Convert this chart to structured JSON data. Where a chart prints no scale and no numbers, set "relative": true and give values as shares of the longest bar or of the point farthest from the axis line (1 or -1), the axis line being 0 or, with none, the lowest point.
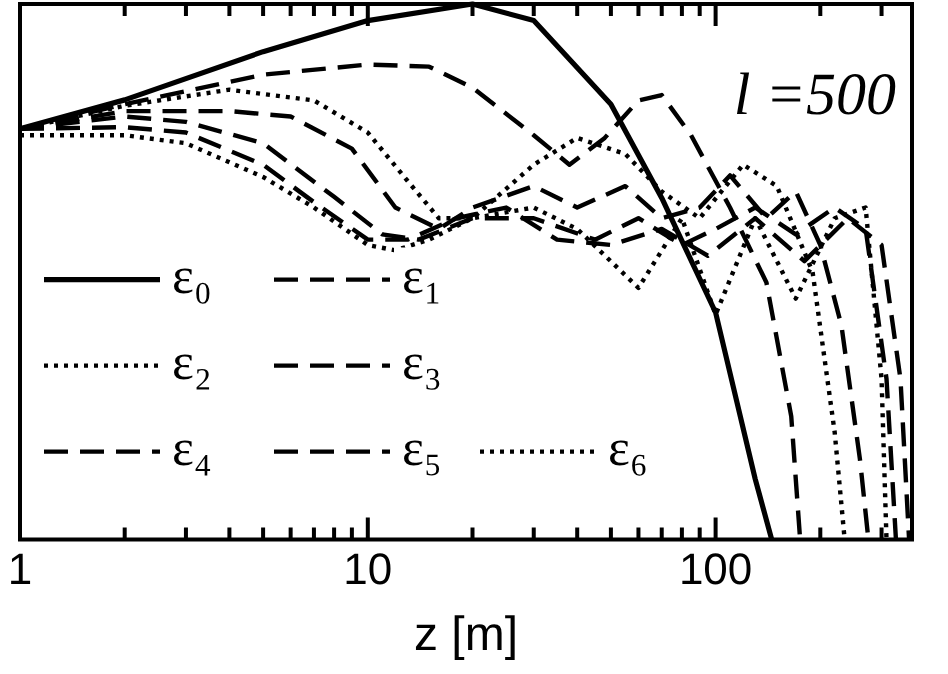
{
  "chart_data": {
    "type": "line",
    "relative": true,
    "log": "x",
    "xlabel": "z [m]",
    "annotations": [
      "l =500"
    ],
    "legend": "bottom left",
    "grid": false,
    "marker": "none",
    "xlim": [
      1,
      367
    ],
    "xticks": [
      1,
      {
        "value": 2,
        "label": null
      },
      {
        "value": 3,
        "label": null
      },
      {
        "value": 4,
        "label": null
      },
      {
        "value": 5,
        "label": null
      },
      {
        "value": 6,
        "label": null
      },
      {
        "value": 7,
        "label": null
      },
      {
        "value": 8,
        "label": null
      },
      {
        "value": 9,
        "label": null
      },
      10,
      {
        "value": 20,
        "label": null
      },
      {
        "value": 30,
        "label": null
      },
      {
        "value": 40,
        "label": null
      },
      {
        "value": 50,
        "label": null
      },
      {
        "value": 60,
        "label": null
      },
      {
        "value": 70,
        "label": null
      },
      {
        "value": 80,
        "label": null
      },
      {
        "value": 90,
        "label": null
      },
      100,
      {
        "value": 200,
        "label": null
      },
      {
        "value": 300,
        "label": null
      }
    ],
    "series": [
      {
        "name": "ε₀",
        "color": "#000000",
        "line_style": "solid",
        "x": [
          1,
          2,
          5,
          10,
          20,
          30,
          50,
          70,
          100,
          130,
          145
        ],
        "values": [
          0.767,
          0.821,
          0.911,
          0.969,
          1,
          0.969,
          0.813,
          0.638,
          0.424,
          0.113,
          0
        ]
      },
      {
        "name": "ε₁",
        "color": "#000000",
        "line_style": "dashed",
        "x": [
          1,
          2,
          5,
          10,
          15,
          20,
          30,
          38,
          48,
          60,
          70,
          85,
          110,
          140,
          165,
          175
        ],
        "values": [
          0.767,
          0.813,
          0.868,
          0.887,
          0.883,
          0.844,
          0.755,
          0.7,
          0.75,
          0.82,
          0.83,
          0.755,
          0.62,
          0.48,
          0.23,
          0
        ]
      },
      {
        "name": "ε₂",
        "color": "#000000",
        "line_style": "dotted",
        "x": [
          1,
          2,
          4,
          7,
          10,
          13,
          16,
          20,
          30,
          40,
          55,
          70,
          90,
          120,
          150,
          190,
          220,
          235
        ],
        "values": [
          0.767,
          0.81,
          0.84,
          0.82,
          0.76,
          0.67,
          0.6,
          0.6,
          0.7,
          0.75,
          0.72,
          0.65,
          0.6,
          0.7,
          0.66,
          0.5,
          0.2,
          0
        ]
      },
      {
        "name": "ε₃",
        "color": "#000000",
        "line_style": "dashed",
        "x": [
          1,
          2,
          4,
          6,
          9,
          12,
          16,
          20,
          30,
          40,
          55,
          70,
          90,
          110,
          140,
          170,
          200,
          230,
          260,
          275
        ],
        "values": [
          0.767,
          0.8,
          0.8,
          0.79,
          0.73,
          0.62,
          0.58,
          0.62,
          0.66,
          0.62,
          0.66,
          0.6,
          0.62,
          0.68,
          0.6,
          0.65,
          0.55,
          0.4,
          0.15,
          0
        ]
      },
      {
        "name": "ε₄",
        "color": "#000000",
        "line_style": "dashed",
        "x": [
          1,
          2,
          3,
          5,
          8,
          11,
          14,
          20,
          30,
          45,
          60,
          80,
          100,
          130,
          170,
          220,
          270,
          310,
          330
        ],
        "values": [
          0.767,
          0.79,
          0.78,
          0.74,
          0.64,
          0.57,
          0.56,
          0.6,
          0.6,
          0.56,
          0.6,
          0.55,
          0.58,
          0.62,
          0.57,
          0.62,
          0.58,
          0.3,
          0
        ]
      },
      {
        "name": "ε₅",
        "color": "#000000",
        "line_style": "dashed",
        "x": [
          1,
          2,
          3,
          5,
          7,
          10,
          13,
          18,
          25,
          35,
          50,
          70,
          95,
          130,
          180,
          240,
          300,
          340,
          360
        ],
        "values": [
          0.767,
          0.77,
          0.76,
          0.7,
          0.63,
          0.56,
          0.56,
          0.6,
          0.62,
          0.56,
          0.55,
          0.58,
          0.53,
          0.6,
          0.52,
          0.6,
          0.55,
          0.3,
          0
        ]
      },
      {
        "name": "ε₆",
        "color": "#000000",
        "line_style": "dotted",
        "x": [
          1,
          2,
          3,
          5,
          7,
          10,
          12,
          15,
          20,
          30,
          40,
          60,
          80,
          100,
          130,
          170,
          220,
          270,
          300,
          310
        ],
        "values": [
          0.755,
          0.755,
          0.74,
          0.677,
          0.62,
          0.55,
          0.54,
          0.56,
          0.6,
          0.62,
          0.58,
          0.47,
          0.6,
          0.42,
          0.6,
          0.45,
          0.6,
          0.62,
          0.3,
          0
        ]
      }
    ]
  }
}
